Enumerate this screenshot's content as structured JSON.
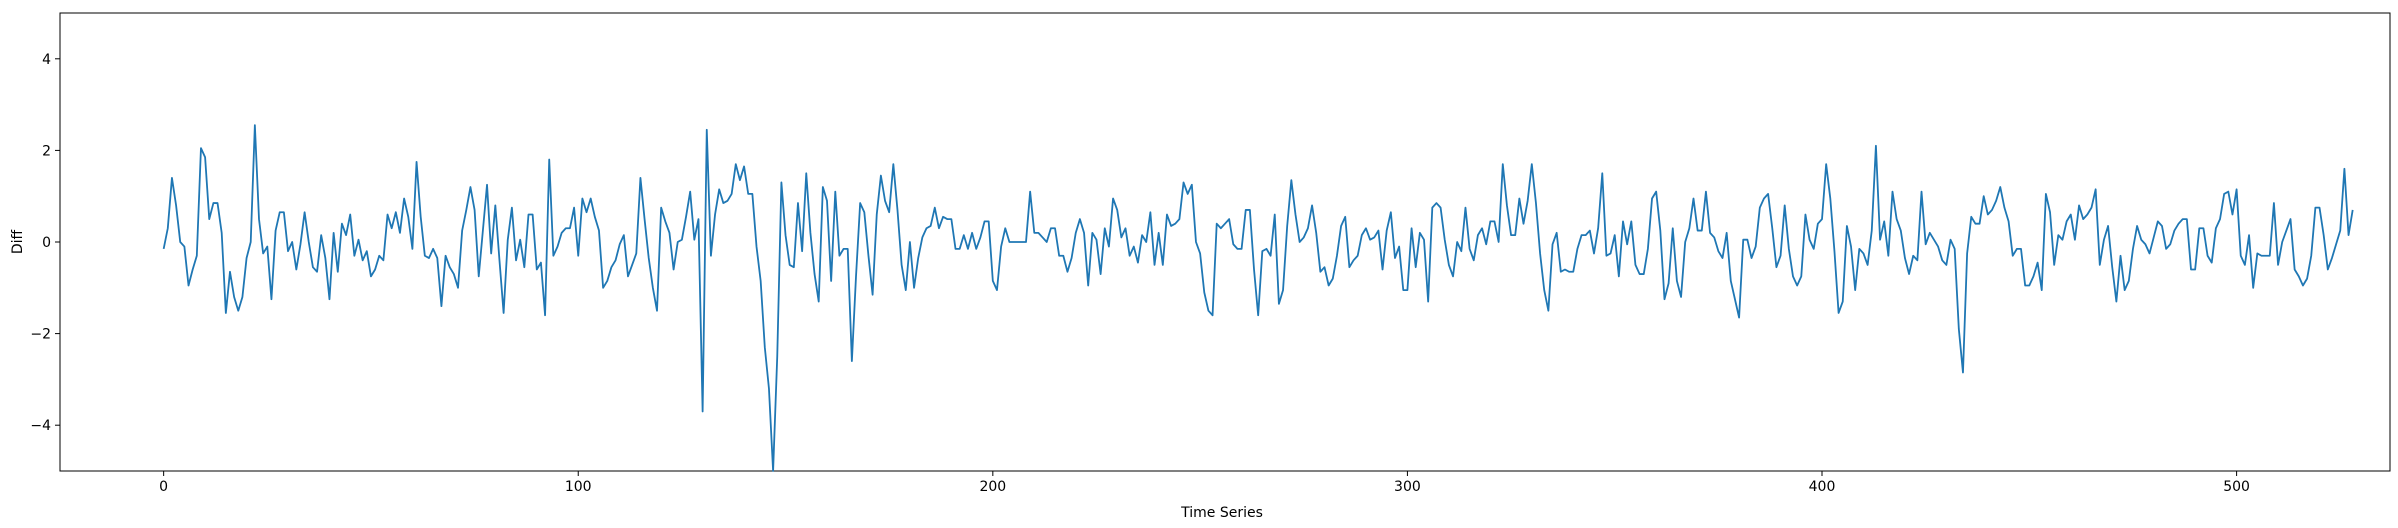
{
  "chart_data": {
    "type": "line",
    "title": "",
    "xlabel": "Time Series",
    "ylabel": "Diff",
    "xlim": [
      -25,
      537
    ],
    "ylim": [
      -5,
      5
    ],
    "xticks": [
      0,
      100,
      200,
      300,
      400,
      500
    ],
    "yticks": [
      -4,
      -2,
      0,
      2,
      4
    ],
    "xtick_labels": [
      "0",
      "100",
      "200",
      "300",
      "400",
      "500"
    ],
    "ytick_labels": [
      "−4",
      "−2",
      "0",
      "2",
      "4"
    ],
    "grid": false,
    "series": [
      {
        "color": "#1f77b4",
        "x_start": 0,
        "values": [
          -0.15,
          0.3,
          1.4,
          0.8,
          0.0,
          -0.1,
          -0.95,
          -0.6,
          -0.3,
          2.05,
          1.85,
          0.5,
          0.85,
          0.85,
          0.2,
          -1.55,
          -0.65,
          -1.2,
          -1.5,
          -1.2,
          -0.35,
          0.0,
          2.55,
          0.5,
          -0.25,
          -0.1,
          -1.25,
          0.25,
          0.65,
          0.65,
          -0.2,
          0.0,
          -0.6,
          -0.05,
          0.65,
          0.0,
          -0.55,
          -0.65,
          0.15,
          -0.35,
          -1.25,
          0.2,
          -0.65,
          0.4,
          0.15,
          0.6,
          -0.3,
          0.05,
          -0.4,
          -0.2,
          -0.75,
          -0.6,
          -0.3,
          -0.4,
          0.6,
          0.3,
          0.65,
          0.2,
          0.95,
          0.55,
          -0.15,
          1.75,
          0.55,
          -0.3,
          -0.35,
          -0.15,
          -0.35,
          -1.4,
          -0.3,
          -0.55,
          -0.7,
          -1.0,
          0.25,
          0.7,
          1.2,
          0.7,
          -0.75,
          0.25,
          1.25,
          -0.25,
          0.8,
          -0.4,
          -1.55,
          0.05,
          0.75,
          -0.4,
          0.05,
          -0.55,
          0.6,
          0.6,
          -0.6,
          -0.45,
          -1.6,
          1.8,
          -0.3,
          -0.1,
          0.2,
          0.3,
          0.3,
          0.75,
          -0.3,
          0.95,
          0.65,
          0.95,
          0.55,
          0.25,
          -1.0,
          -0.85,
          -0.55,
          -0.4,
          -0.05,
          0.15,
          -0.75,
          -0.5,
          -0.25,
          1.4,
          0.5,
          -0.35,
          -1.0,
          -1.5,
          0.75,
          0.45,
          0.2,
          -0.6,
          0.0,
          0.05,
          0.55,
          1.1,
          0.05,
          0.5,
          -3.7,
          2.45,
          -0.3,
          0.6,
          1.15,
          0.85,
          0.9,
          1.05,
          1.7,
          1.35,
          1.65,
          1.05,
          1.05,
          -0.1,
          -0.85,
          -2.3,
          -3.2,
          -5.2,
          -2.5,
          1.3,
          0.15,
          -0.5,
          -0.55,
          0.85,
          -0.2,
          1.5,
          0.2,
          -0.7,
          -1.3,
          1.2,
          0.9,
          -0.85,
          1.1,
          -0.3,
          -0.15,
          -0.15,
          -2.6,
          -0.75,
          0.85,
          0.65,
          -0.3,
          -1.15,
          0.6,
          1.45,
          0.9,
          0.65,
          1.7,
          0.7,
          -0.5,
          -1.05,
          0.0,
          -1.0,
          -0.35,
          0.1,
          0.3,
          0.35,
          0.75,
          0.3,
          0.55,
          0.5,
          0.5,
          -0.15,
          -0.15,
          0.15,
          -0.15,
          0.2,
          -0.15,
          0.1,
          0.45,
          0.45,
          -0.85,
          -1.05,
          -0.1,
          0.3,
          0.0,
          0.0,
          0.0,
          0.0,
          0.0,
          1.1,
          0.2,
          0.2,
          0.1,
          0.0,
          0.3,
          0.3,
          -0.3,
          -0.3,
          -0.65,
          -0.35,
          0.2,
          0.5,
          0.2,
          -0.95,
          0.2,
          0.05,
          -0.7,
          0.3,
          -0.1,
          0.95,
          0.7,
          0.1,
          0.3,
          -0.3,
          -0.1,
          -0.45,
          0.15,
          0.0,
          0.65,
          -0.5,
          0.2,
          -0.5,
          0.6,
          0.35,
          0.4,
          0.5,
          1.3,
          1.05,
          1.25,
          0.0,
          -0.25,
          -1.1,
          -1.5,
          -1.6,
          0.4,
          0.3,
          0.4,
          0.5,
          -0.05,
          -0.15,
          -0.15,
          0.7,
          0.7,
          -0.6,
          -1.6,
          -0.2,
          -0.15,
          -0.3,
          0.6,
          -1.35,
          -1.05,
          0.35,
          1.35,
          0.6,
          0.0,
          0.1,
          0.3,
          0.8,
          0.2,
          -0.65,
          -0.55,
          -0.95,
          -0.8,
          -0.3,
          0.35,
          0.55,
          -0.55,
          -0.4,
          -0.3,
          0.15,
          0.3,
          0.05,
          0.1,
          0.25,
          -0.6,
          0.25,
          0.65,
          -0.35,
          -0.1,
          -1.05,
          -1.05,
          0.3,
          -0.55,
          0.2,
          0.05,
          -1.3,
          0.75,
          0.85,
          0.75,
          0.05,
          -0.5,
          -0.75,
          0.0,
          -0.2,
          0.75,
          -0.15,
          -0.4,
          0.15,
          0.3,
          -0.05,
          0.45,
          0.45,
          0.0,
          1.7,
          0.8,
          0.15,
          0.15,
          0.95,
          0.4,
          0.9,
          1.7,
          0.85,
          -0.25,
          -1.05,
          -1.5,
          -0.05,
          0.2,
          -0.65,
          -0.6,
          -0.65,
          -0.65,
          -0.15,
          0.15,
          0.15,
          0.25,
          -0.25,
          0.3,
          1.5,
          -0.3,
          -0.25,
          0.15,
          -0.75,
          0.45,
          -0.05,
          0.45,
          -0.5,
          -0.7,
          -0.7,
          -0.15,
          0.95,
          1.1,
          0.25,
          -1.25,
          -0.9,
          0.3,
          -0.85,
          -1.2,
          0.0,
          0.3,
          0.95,
          0.25,
          0.25,
          1.1,
          0.2,
          0.1,
          -0.2,
          -0.35,
          0.2,
          -0.85,
          -1.25,
          -1.65,
          0.05,
          0.05,
          -0.35,
          -0.1,
          0.75,
          0.95,
          1.05,
          0.3,
          -0.55,
          -0.3,
          0.8,
          -0.15,
          -0.75,
          -0.95,
          -0.75,
          0.6,
          0.05,
          -0.15,
          0.4,
          0.5,
          1.7,
          0.95,
          -0.2,
          -1.55,
          -1.3,
          0.35,
          -0.1,
          -1.05,
          -0.15,
          -0.25,
          -0.5,
          0.25,
          2.1,
          0.05,
          0.45,
          -0.3,
          1.1,
          0.5,
          0.25,
          -0.35,
          -0.7,
          -0.3,
          -0.4,
          1.1,
          -0.05,
          0.2,
          0.05,
          -0.1,
          -0.4,
          -0.5,
          0.05,
          -0.15,
          -1.9,
          -2.85,
          -0.25,
          0.55,
          0.4,
          0.4,
          1.0,
          0.6,
          0.7,
          0.9,
          1.2,
          0.75,
          0.45,
          -0.3,
          -0.15,
          -0.15,
          -0.95,
          -0.95,
          -0.75,
          -0.45,
          -1.05,
          1.05,
          0.65,
          -0.5,
          0.15,
          0.05,
          0.45,
          0.6,
          0.05,
          0.8,
          0.5,
          0.6,
          0.75,
          1.15,
          -0.5,
          0.05,
          0.35,
          -0.55,
          -1.3,
          -0.3,
          -1.05,
          -0.85,
          -0.15,
          0.35,
          0.05,
          -0.05,
          -0.25,
          0.1,
          0.45,
          0.35,
          -0.15,
          -0.05,
          0.25,
          0.4,
          0.5,
          0.5,
          -0.6,
          -0.6,
          0.3,
          0.3,
          -0.3,
          -0.45,
          0.3,
          0.5,
          1.05,
          1.1,
          0.6,
          1.15,
          -0.3,
          -0.5,
          0.15,
          -1.0,
          -0.25,
          -0.3,
          -0.3,
          -0.3,
          0.85,
          -0.5,
          0.0,
          0.25,
          0.5,
          -0.6,
          -0.75,
          -0.95,
          -0.8,
          -0.3,
          0.75,
          0.75,
          0.15,
          -0.6,
          -0.35,
          -0.05,
          0.25,
          1.6,
          0.15,
          0.7
        ]
      }
    ]
  }
}
